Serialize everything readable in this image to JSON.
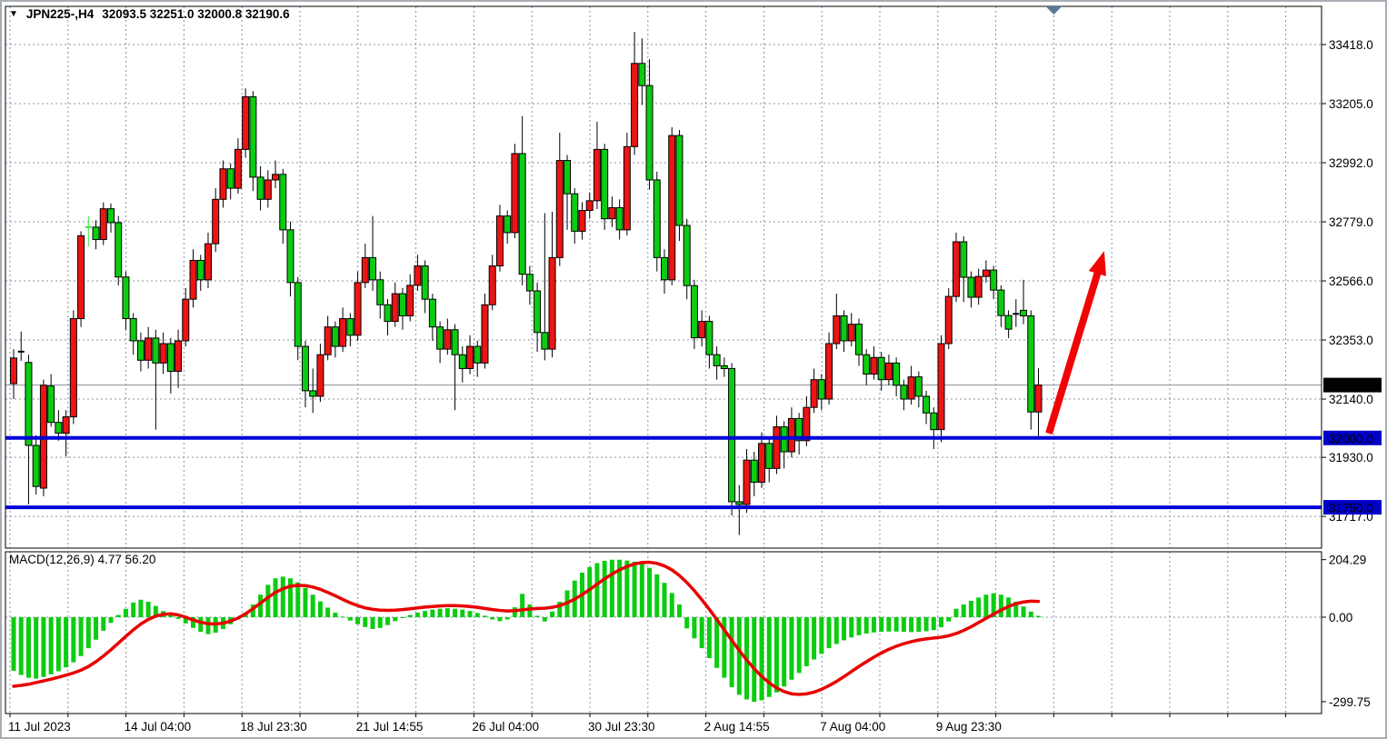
{
  "title": {
    "dropdown_icon": "▼",
    "symbol_period": "JPN225-,H4",
    "ohlc": "32093.5 32251.0 32000.8 32190.6"
  },
  "indicator": {
    "label": "MACD(12,26,9)",
    "values": "4.77 56.20"
  },
  "price_axis": {
    "labels": [
      {
        "text": "33418.0",
        "price": 33418.0
      },
      {
        "text": "33205.0",
        "price": 33205.0
      },
      {
        "text": "32992.0",
        "price": 32992.0
      },
      {
        "text": "32779.0",
        "price": 32779.0
      },
      {
        "text": "32566.0",
        "price": 32566.0
      },
      {
        "text": "32353.0",
        "price": 32353.0
      },
      {
        "text": "32140.0",
        "price": 32140.0
      },
      {
        "text": "31930.0",
        "price": 31930.0
      },
      {
        "text": "31717.0",
        "price": 31717.0
      }
    ],
    "badges": [
      {
        "text": "32190.6",
        "price": 32190.6,
        "type": "bid"
      },
      {
        "text": "32000.0",
        "price": 32000.0,
        "type": "level"
      },
      {
        "text": "31750.0",
        "price": 31750.0,
        "type": "level"
      }
    ]
  },
  "time_axis": {
    "labels": [
      {
        "text": "11 Jul 2023",
        "gridline": 0
      },
      {
        "text": "14 Jul 04:00",
        "gridline": 2
      },
      {
        "text": "18 Jul 23:30",
        "gridline": 4
      },
      {
        "text": "21 Jul 14:55",
        "gridline": 6
      },
      {
        "text": "26 Jul 04:00",
        "gridline": 8
      },
      {
        "text": "30 Jul 23:30",
        "gridline": 10
      },
      {
        "text": "2 Aug 14:55",
        "gridline": 12
      },
      {
        "text": "7 Aug 04:00",
        "gridline": 14
      },
      {
        "text": "9 Aug 23:30",
        "gridline": 16
      }
    ],
    "gridline_count": 23
  },
  "macd_axis": {
    "labels": [
      {
        "text": "204.29",
        "value": 204.29
      },
      {
        "text": "0.00",
        "value": 0.0
      },
      {
        "text": "-299.75",
        "value": -299.75
      }
    ]
  },
  "chart_data": {
    "type": "candlestick",
    "symbol": "JPN225-",
    "timeframe": "H4",
    "title": "JPN225-,H4 32093.5 32251.0 32000.8 32190.6",
    "note": "bullish candles drawn red, bearish candles drawn green",
    "ylim": [
      31578,
      33580
    ],
    "support_levels": [
      32000.0,
      31750.0
    ],
    "bid_price": 32190.6,
    "candles": [
      [
        32196,
        32320,
        32140,
        32288
      ],
      [
        32311,
        32383,
        32278,
        32311
      ],
      [
        32272,
        32300,
        31761,
        31973
      ],
      [
        31973,
        32010,
        31796,
        31825
      ],
      [
        31819,
        32210,
        31790,
        32190
      ],
      [
        32187,
        32230,
        32040,
        32056
      ],
      [
        32056,
        32100,
        31990,
        32017
      ],
      [
        32017,
        32100,
        31934,
        32076
      ],
      [
        32076,
        32460,
        32050,
        32430
      ],
      [
        32430,
        32745,
        32400,
        32729
      ],
      [
        32760,
        32800,
        32690,
        32760,
        "lime"
      ],
      [
        32760,
        32785,
        32680,
        32715
      ],
      [
        32715,
        32849,
        32695,
        32826
      ],
      [
        32826,
        32845,
        32740,
        32776
      ],
      [
        32776,
        32800,
        32550,
        32580
      ],
      [
        32580,
        32600,
        32390,
        32430
      ],
      [
        32430,
        32450,
        32300,
        32350
      ],
      [
        32350,
        32380,
        32240,
        32280
      ],
      [
        32280,
        32400,
        32250,
        32360
      ],
      [
        32360,
        32390,
        32030,
        32270
      ],
      [
        32270,
        32380,
        32230,
        32340
      ],
      [
        32340,
        32360,
        32160,
        32240
      ],
      [
        32240,
        32390,
        32180,
        32350
      ],
      [
        32350,
        32540,
        32330,
        32500
      ],
      [
        32500,
        32680,
        32470,
        32640
      ],
      [
        32640,
        32660,
        32530,
        32570
      ],
      [
        32570,
        32740,
        32540,
        32700
      ],
      [
        32700,
        32900,
        32670,
        32860
      ],
      [
        32860,
        33000,
        32830,
        32970
      ],
      [
        32970,
        32990,
        32860,
        32900
      ],
      [
        32900,
        33080,
        32880,
        33040
      ],
      [
        33040,
        33260,
        33010,
        33230
      ],
      [
        33230,
        33250,
        32890,
        32940
      ],
      [
        32940,
        32980,
        32820,
        32860
      ],
      [
        32860,
        32965,
        32830,
        32930
      ],
      [
        32930,
        33000,
        32900,
        32950
      ],
      [
        32950,
        32970,
        32700,
        32750
      ],
      [
        32750,
        32780,
        32510,
        32560
      ],
      [
        32560,
        32580,
        32280,
        32330
      ],
      [
        32330,
        32350,
        32110,
        32170
      ],
      [
        32170,
        32250,
        32090,
        32150
      ],
      [
        32150,
        32340,
        32130,
        32300
      ],
      [
        32300,
        32440,
        32280,
        32400
      ],
      [
        32400,
        32420,
        32290,
        32330
      ],
      [
        32330,
        32470,
        32310,
        32430
      ],
      [
        32430,
        32450,
        32330,
        32370
      ],
      [
        32370,
        32600,
        32350,
        32560
      ],
      [
        32560,
        32700,
        32540,
        32650
      ],
      [
        32650,
        32800,
        32530,
        32570
      ],
      [
        32570,
        32600,
        32430,
        32480
      ],
      [
        32480,
        32500,
        32370,
        32420
      ],
      [
        32420,
        32560,
        32400,
        32520
      ],
      [
        32520,
        32540,
        32390,
        32440
      ],
      [
        32440,
        32590,
        32420,
        32550
      ],
      [
        32550,
        32660,
        32530,
        32620
      ],
      [
        32620,
        32640,
        32450,
        32500
      ],
      [
        32500,
        32520,
        32350,
        32400
      ],
      [
        32400,
        32420,
        32270,
        32320
      ],
      [
        32320,
        32430,
        32300,
        32390
      ],
      [
        32390,
        32410,
        32100,
        32300
      ],
      [
        32300,
        32330,
        32200,
        32250
      ],
      [
        32250,
        32370,
        32230,
        32330
      ],
      [
        32330,
        32350,
        32220,
        32270
      ],
      [
        32270,
        32520,
        32250,
        32480
      ],
      [
        32480,
        32660,
        32460,
        32620
      ],
      [
        32620,
        32840,
        32600,
        32800
      ],
      [
        32800,
        32820,
        32700,
        32740
      ],
      [
        32740,
        33060,
        32720,
        33025
      ],
      [
        33025,
        33160,
        32550,
        32590
      ],
      [
        32590,
        32620,
        32480,
        32530
      ],
      [
        32530,
        32560,
        32310,
        32380
      ],
      [
        32380,
        32810,
        32280,
        32320
      ],
      [
        32320,
        32815,
        32290,
        32650
      ],
      [
        32650,
        33100,
        32620,
        33000
      ],
      [
        33000,
        33020,
        32750,
        32880
      ],
      [
        32880,
        32900,
        32700,
        32745
      ],
      [
        32745,
        32850,
        32715,
        32820
      ],
      [
        32820,
        32885,
        32790,
        32855
      ],
      [
        32855,
        33140,
        32825,
        33040
      ],
      [
        33040,
        33060,
        32750,
        32790
      ],
      [
        32790,
        32870,
        32760,
        32830
      ],
      [
        32830,
        32860,
        32715,
        32750
      ],
      [
        32750,
        33100,
        32730,
        33050
      ],
      [
        33050,
        33464,
        33020,
        33350
      ],
      [
        33350,
        33440,
        33200,
        33270
      ],
      [
        33270,
        33365,
        32895,
        32930
      ],
      [
        32930,
        32960,
        32600,
        32650
      ],
      [
        32650,
        32680,
        32520,
        32570
      ],
      [
        32570,
        33120,
        32550,
        33090
      ],
      [
        33090,
        33110,
        32710,
        32766
      ],
      [
        32766,
        32790,
        32500,
        32549
      ],
      [
        32549,
        32570,
        32320,
        32361
      ],
      [
        32361,
        32460,
        32330,
        32420
      ],
      [
        32420,
        32440,
        32250,
        32300
      ],
      [
        32300,
        32330,
        32210,
        32260
      ],
      [
        32260,
        32290,
        32220,
        32250
      ],
      [
        32250,
        32270,
        31720,
        31770
      ],
      [
        31770,
        31830,
        31650,
        31760
      ],
      [
        31760,
        31960,
        31730,
        31920
      ],
      [
        31920,
        31950,
        31790,
        31840
      ],
      [
        31840,
        32020,
        31820,
        31980
      ],
      [
        31980,
        32000,
        31840,
        31890
      ],
      [
        31890,
        32080,
        31870,
        32040
      ],
      [
        32040,
        32060,
        31890,
        31950
      ],
      [
        31950,
        32110,
        31930,
        32070
      ],
      [
        32070,
        32090,
        31940,
        31990
      ],
      [
        31990,
        32150,
        31970,
        32110
      ],
      [
        32110,
        32250,
        32090,
        32210
      ],
      [
        32210,
        32230,
        32100,
        32140
      ],
      [
        32140,
        32380,
        32120,
        32340
      ],
      [
        32340,
        32520,
        32320,
        32440
      ],
      [
        32440,
        32460,
        32310,
        32350
      ],
      [
        32350,
        32450,
        32330,
        32410
      ],
      [
        32410,
        32430,
        32260,
        32300
      ],
      [
        32300,
        32320,
        32190,
        32230
      ],
      [
        32230,
        32330,
        32210,
        32290
      ],
      [
        32290,
        32310,
        32170,
        32210
      ],
      [
        32210,
        32300,
        32190,
        32270
      ],
      [
        32270,
        32290,
        32150,
        32190
      ],
      [
        32190,
        32210,
        32100,
        32140
      ],
      [
        32140,
        32260,
        32120,
        32220
      ],
      [
        32220,
        32240,
        32110,
        32150
      ],
      [
        32150,
        32170,
        32050,
        32090
      ],
      [
        32090,
        32110,
        31960,
        32030
      ],
      [
        32030,
        32370,
        31985,
        32340
      ],
      [
        32340,
        32540,
        32320,
        32510
      ],
      [
        32510,
        32740,
        32490,
        32707
      ],
      [
        32707,
        32727,
        32490,
        32579
      ],
      [
        32579,
        32600,
        32470,
        32507
      ],
      [
        32507,
        32610,
        32480,
        32582
      ],
      [
        32582,
        32640,
        32560,
        32605
      ],
      [
        32605,
        32620,
        32500,
        32533
      ],
      [
        32533,
        32550,
        32400,
        32441
      ],
      [
        32441,
        32460,
        32360,
        32392
      ],
      [
        32447,
        32500,
        32400,
        32447
      ],
      [
        32460,
        32570,
        32410,
        32440
      ],
      [
        32440,
        32460,
        32030,
        32093.5
      ],
      [
        32093.5,
        32251.0,
        32000.8,
        32190.6
      ]
    ],
    "macd": {
      "histogram": [
        -190,
        -205,
        -215,
        -218,
        -212,
        -203,
        -192,
        -178,
        -160,
        -138,
        -110,
        -80,
        -48,
        -20,
        8,
        30,
        52,
        62,
        55,
        40,
        22,
        8,
        -6,
        -22,
        -38,
        -52,
        -60,
        -55,
        -42,
        -25,
        -8,
        15,
        45,
        80,
        115,
        138,
        144,
        138,
        124,
        104,
        80,
        56,
        34,
        16,
        2,
        -12,
        -25,
        -35,
        -42,
        -38,
        -28,
        -14,
        -2,
        8,
        16,
        22,
        27,
        30,
        32,
        30,
        27,
        22,
        15,
        5,
        -8,
        -14,
        -8,
        35,
        83,
        45,
        5,
        -15,
        20,
        55,
        95,
        130,
        158,
        178,
        192,
        200,
        204,
        204,
        201,
        197,
        190,
        175,
        152,
        122,
        86,
        45,
        -40,
        -75,
        -110,
        -145,
        -180,
        -215,
        -248,
        -275,
        -292,
        -300,
        -295,
        -283,
        -267,
        -246,
        -222,
        -198,
        -174,
        -150,
        -130,
        -110,
        -95,
        -82,
        -72,
        -64,
        -58,
        -54,
        -52,
        -51,
        -51,
        -52,
        -53,
        -52,
        -50,
        -46,
        -36,
        -15,
        30,
        45,
        58,
        70,
        80,
        85,
        80,
        70,
        55,
        38,
        20,
        4.77
      ],
      "signal": [
        -245,
        -242,
        -238,
        -232,
        -226,
        -220,
        -213,
        -206,
        -198,
        -188,
        -175,
        -158,
        -138,
        -116,
        -92,
        -68,
        -45,
        -24,
        -8,
        4,
        10,
        12,
        8,
        0,
        -10,
        -18,
        -23,
        -24,
        -21,
        -14,
        -3,
        12,
        30,
        50,
        70,
        88,
        101,
        110,
        113,
        112,
        107,
        99,
        88,
        76,
        63,
        51,
        41,
        33,
        28,
        25,
        24,
        25,
        27,
        30,
        33,
        36,
        38,
        40,
        41,
        41,
        40,
        38,
        35,
        31,
        27,
        24,
        22,
        23,
        26,
        29,
        31,
        32,
        35,
        41,
        51,
        64,
        80,
        98,
        117,
        136,
        153,
        168,
        180,
        189,
        194,
        195,
        191,
        182,
        168,
        148,
        123,
        94,
        62,
        28,
        -8,
        -45,
        -82,
        -118,
        -152,
        -183,
        -210,
        -233,
        -251,
        -264,
        -272,
        -274,
        -272,
        -266,
        -256,
        -243,
        -228,
        -211,
        -193,
        -175,
        -158,
        -142,
        -127,
        -114,
        -103,
        -94,
        -87,
        -81,
        -77,
        -74,
        -71,
        -66,
        -58,
        -47,
        -34,
        -19,
        -4,
        11,
        25,
        38,
        48,
        54,
        57,
        56.2
      ]
    }
  },
  "annotations": {
    "arrow": {
      "from_index": 138.4,
      "from_price": 32016,
      "to_index": 145.8,
      "to_price": 32674
    },
    "shift_marker_gridline": 18
  },
  "colors": {
    "bull": "#ed1414",
    "bear": "#0ccc11",
    "doji_special": "#3ae23a",
    "wick": "#000000",
    "level_line": "#0000d8",
    "bid_line": "#8c9096",
    "signal_line": "#e80000",
    "histogram": "#0ccc11",
    "grid": "#8494a8",
    "arrow": "#f00505",
    "badge_bid_bg": "#000000",
    "badge_level_bg": "#0000c8",
    "badge_text": "#ffffff",
    "border": "#000000",
    "shift_marker": "#5f7896"
  }
}
